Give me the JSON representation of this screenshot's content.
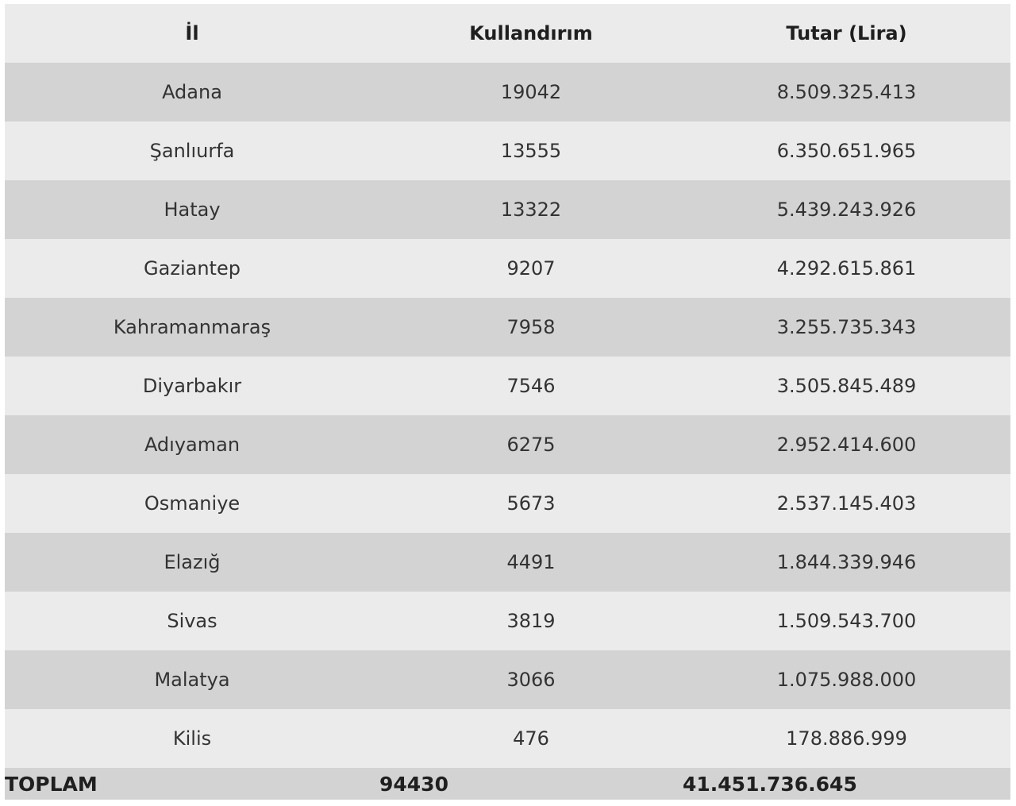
{
  "table": {
    "headers": [
      "İl",
      "Kullandırım",
      "Tutar (Lira)"
    ],
    "rows": [
      {
        "province": "Adana",
        "count": "19042",
        "amount": "8.509.325.413"
      },
      {
        "province": "Şanlıurfa",
        "count": "13555",
        "amount": "6.350.651.965"
      },
      {
        "province": "Hatay",
        "count": "13322",
        "amount": "5.439.243.926"
      },
      {
        "province": "Gaziantep",
        "count": "9207",
        "amount": "4.292.615.861"
      },
      {
        "province": "Kahramanmaraş",
        "count": "7958",
        "amount": "3.255.735.343"
      },
      {
        "province": "Diyarbakır",
        "count": "7546",
        "amount": "3.505.845.489"
      },
      {
        "province": "Adıyaman",
        "count": "6275",
        "amount": "2.952.414.600"
      },
      {
        "province": "Osmaniye",
        "count": "5673",
        "amount": "2.537.145.403"
      },
      {
        "province": "Elazığ",
        "count": "4491",
        "amount": "1.844.339.946"
      },
      {
        "province": "Sivas",
        "count": "3819",
        "amount": "1.509.543.700"
      },
      {
        "province": "Malatya",
        "count": "3066",
        "amount": "1.075.988.000"
      },
      {
        "province": "Kilis",
        "count": "476",
        "amount": "178.886.999"
      }
    ],
    "total": {
      "label": "TOPLAM",
      "count": "94430",
      "amount": "41.451.736.645"
    }
  }
}
